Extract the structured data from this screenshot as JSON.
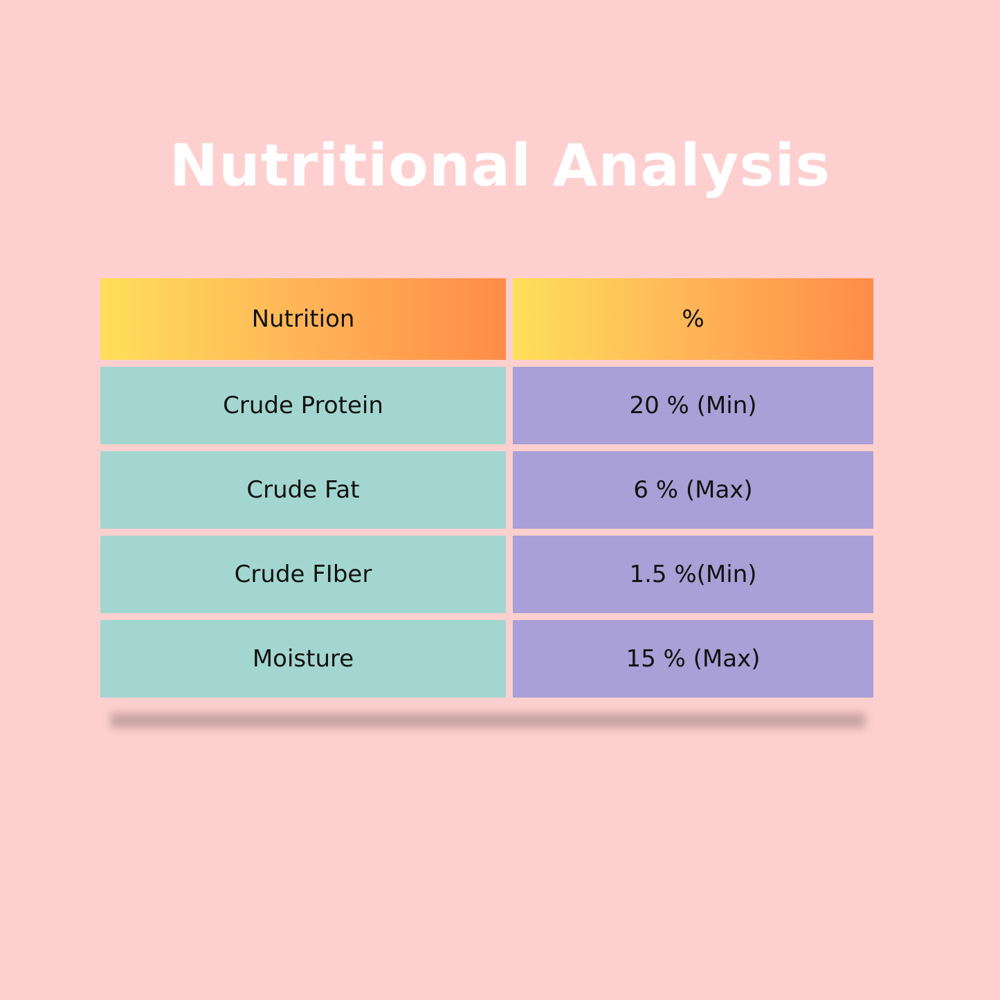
{
  "title": "Nutritional Analysis",
  "table": {
    "header": [
      "Nutrition",
      "%"
    ],
    "rows": [
      [
        "Crude Protein",
        "20 % (Min)"
      ],
      [
        "Crude Fat",
        "6 % (Max)"
      ],
      [
        "Crude FIber",
        "1.5 %(Min)"
      ],
      [
        "Moisture",
        "15 % (Max)"
      ]
    ]
  }
}
